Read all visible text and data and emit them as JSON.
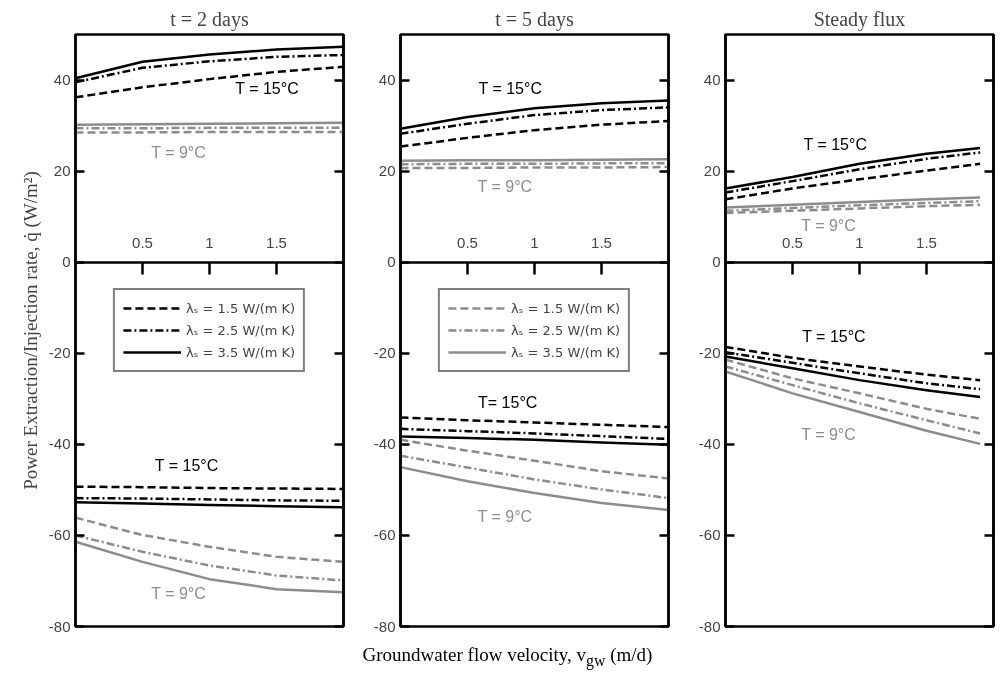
{
  "chart_data": [
    {
      "type": "line",
      "title": "t = 2 days",
      "ylabel": "Power Extraction/Injection rate, q̇ (W/m²)",
      "xlim": [
        0,
        2
      ],
      "xticks": [
        0.5,
        1,
        1.5
      ],
      "ylim": [
        -80,
        50
      ],
      "yticks": [
        -80,
        -60,
        -40,
        -20,
        0,
        20,
        40
      ],
      "grid": false,
      "legend": "center",
      "x": [
        0,
        0.5,
        1,
        1.5,
        2
      ],
      "series": [
        {
          "name": "λₛ = 1.5 W/(m K)",
          "color": "#000000",
          "line_style": "dashed",
          "values": [
            36.2,
            38.4,
            40.2,
            41.8,
            42.9
          ]
        },
        {
          "name": "λₛ = 2.5 W/(m K)",
          "color": "#000000",
          "line_style": "dashdot",
          "values": [
            39.5,
            42.7,
            44.1,
            45.1,
            45.5
          ]
        },
        {
          "name": "λₛ = 3.5 W/(m K)",
          "color": "#000000",
          "line_style": "solid",
          "values": [
            40.4,
            44.0,
            45.6,
            46.7,
            47.3
          ]
        },
        {
          "color": "#8c8c8c",
          "line_style": "dashed",
          "values": [
            28.5,
            28.5,
            28.6,
            28.6,
            28.6
          ]
        },
        {
          "color": "#8c8c8c",
          "line_style": "dashdot",
          "values": [
            29.4,
            29.4,
            29.5,
            29.5,
            29.5
          ]
        },
        {
          "color": "#8c8c8c",
          "line_style": "solid",
          "values": [
            30.2,
            30.3,
            30.4,
            30.5,
            30.6
          ]
        },
        {
          "color": "#000000",
          "line_style": "dashed",
          "values": [
            -49.3,
            -49.4,
            -49.6,
            -49.7,
            -49.8
          ]
        },
        {
          "color": "#000000",
          "line_style": "dashdot",
          "values": [
            -51.8,
            -51.9,
            -52.1,
            -52.3,
            -52.4
          ]
        },
        {
          "color": "#000000",
          "line_style": "solid",
          "values": [
            -52.7,
            -53.0,
            -53.3,
            -53.6,
            -53.8
          ]
        },
        {
          "color": "#8c8c8c",
          "line_style": "dashed",
          "values": [
            -56.1,
            -59.9,
            -62.5,
            -64.7,
            -65.8
          ]
        },
        {
          "color": "#8c8c8c",
          "line_style": "dashdot",
          "values": [
            -60.0,
            -63.6,
            -66.6,
            -68.8,
            -69.9
          ]
        },
        {
          "color": "#8c8c8c",
          "line_style": "solid",
          "values": [
            -61.4,
            -65.8,
            -69.6,
            -71.8,
            -72.5
          ]
        }
      ],
      "annotations": [
        "T = 15°C",
        "T = 9°C",
        "T = 15°C",
        "T = 9°C"
      ]
    },
    {
      "type": "line",
      "title": "t = 5 days",
      "xlabel": "Groundwater flow velocity, v$_{gw}$ (m/d)",
      "xlim": [
        0,
        2
      ],
      "xticks": [
        0.5,
        1,
        1.5
      ],
      "ylim": [
        -80,
        50
      ],
      "yticks": [
        -80,
        -60,
        -40,
        -20,
        0,
        20,
        40
      ],
      "grid": false,
      "legend": "center",
      "x": [
        0,
        0.5,
        1,
        1.5,
        2
      ],
      "series": [
        {
          "color": "#000000",
          "line_style": "dashed",
          "values": [
            25.4,
            27.3,
            29.0,
            30.2,
            31.0
          ]
        },
        {
          "color": "#000000",
          "line_style": "dashdot",
          "values": [
            28.2,
            30.4,
            32.3,
            33.4,
            34.0
          ]
        },
        {
          "color": "#000000",
          "line_style": "solid",
          "values": [
            29.3,
            31.9,
            33.8,
            34.9,
            35.5
          ]
        },
        {
          "name": "λₛ = 1.5 W/(m K)",
          "color": "#8c8c8c",
          "line_style": "dashed",
          "values": [
            20.7,
            20.7,
            20.8,
            20.8,
            20.9
          ]
        },
        {
          "name": "λₛ = 2.5 W/(m K)",
          "color": "#8c8c8c",
          "line_style": "dashdot",
          "values": [
            21.5,
            21.6,
            21.6,
            21.7,
            21.7
          ]
        },
        {
          "name": "λₛ = 3.5 W/(m K)",
          "color": "#8c8c8c",
          "line_style": "solid",
          "values": [
            22.3,
            22.4,
            22.4,
            22.5,
            22.6
          ]
        },
        {
          "color": "#000000",
          "line_style": "dashed",
          "values": [
            -34.1,
            -34.7,
            -35.2,
            -35.7,
            -36.2
          ]
        },
        {
          "color": "#000000",
          "line_style": "dashdot",
          "values": [
            -36.6,
            -37.1,
            -37.6,
            -38.2,
            -38.8
          ]
        },
        {
          "color": "#000000",
          "line_style": "solid",
          "values": [
            -38.3,
            -38.6,
            -39.0,
            -39.6,
            -40.1
          ]
        },
        {
          "color": "#8c8c8c",
          "line_style": "dashed",
          "values": [
            -39.0,
            -41.4,
            -43.6,
            -45.9,
            -47.5
          ]
        },
        {
          "color": "#8c8c8c",
          "line_style": "dashdot",
          "values": [
            -42.5,
            -45.1,
            -47.7,
            -49.9,
            -51.8
          ]
        },
        {
          "color": "#8c8c8c",
          "line_style": "solid",
          "values": [
            -45.0,
            -48.1,
            -50.7,
            -52.9,
            -54.4
          ]
        }
      ],
      "annotations": [
        "T = 15°C",
        "T = 9°C",
        "T= 15°C",
        "T = 9°C"
      ]
    },
    {
      "type": "line",
      "title": "Steady flux",
      "xlim": [
        0,
        2
      ],
      "xticks": [
        0.5,
        1,
        1.5
      ],
      "ylim": [
        -80,
        50
      ],
      "yticks": [
        -80,
        -60,
        -40,
        -20,
        0,
        20,
        40
      ],
      "grid": false,
      "x": [
        0,
        0.5,
        1,
        1.5,
        1.9
      ],
      "series": [
        {
          "color": "#000000",
          "line_style": "dashed",
          "values": [
            13.8,
            16.2,
            18.2,
            20.1,
            21.6
          ]
        },
        {
          "color": "#000000",
          "line_style": "dashdot",
          "values": [
            15.3,
            17.8,
            20.4,
            22.7,
            24.1
          ]
        },
        {
          "color": "#000000",
          "line_style": "solid",
          "values": [
            16.2,
            18.7,
            21.6,
            23.8,
            25.1
          ]
        },
        {
          "color": "#8c8c8c",
          "line_style": "dashed",
          "values": [
            10.8,
            11.3,
            11.8,
            12.3,
            12.6
          ]
        },
        {
          "color": "#8c8c8c",
          "line_style": "dashdot",
          "values": [
            11.3,
            11.9,
            12.5,
            13.0,
            13.4
          ]
        },
        {
          "color": "#8c8c8c",
          "line_style": "solid",
          "values": [
            12.0,
            12.6,
            13.2,
            13.8,
            14.2
          ]
        },
        {
          "color": "#000000",
          "line_style": "dashed",
          "values": [
            -18.6,
            -21.0,
            -22.9,
            -24.7,
            -25.9
          ]
        },
        {
          "color": "#000000",
          "line_style": "dashdot",
          "values": [
            -19.8,
            -22.1,
            -24.4,
            -26.6,
            -27.9
          ]
        },
        {
          "color": "#000000",
          "line_style": "solid",
          "values": [
            -20.7,
            -23.3,
            -25.9,
            -28.1,
            -29.6
          ]
        },
        {
          "color": "#8c8c8c",
          "line_style": "dashed",
          "values": [
            -21.4,
            -25.5,
            -28.8,
            -32.2,
            -34.4
          ]
        },
        {
          "color": "#8c8c8c",
          "line_style": "dashdot",
          "values": [
            -22.9,
            -27.0,
            -31.0,
            -34.7,
            -37.6
          ]
        },
        {
          "color": "#8c8c8c",
          "line_style": "solid",
          "values": [
            -24.0,
            -28.8,
            -32.9,
            -37.0,
            -39.9
          ]
        }
      ],
      "annotations": [
        "T = 15°C",
        "T = 9°C",
        "T = 15°C",
        "T = 9°C"
      ]
    }
  ]
}
